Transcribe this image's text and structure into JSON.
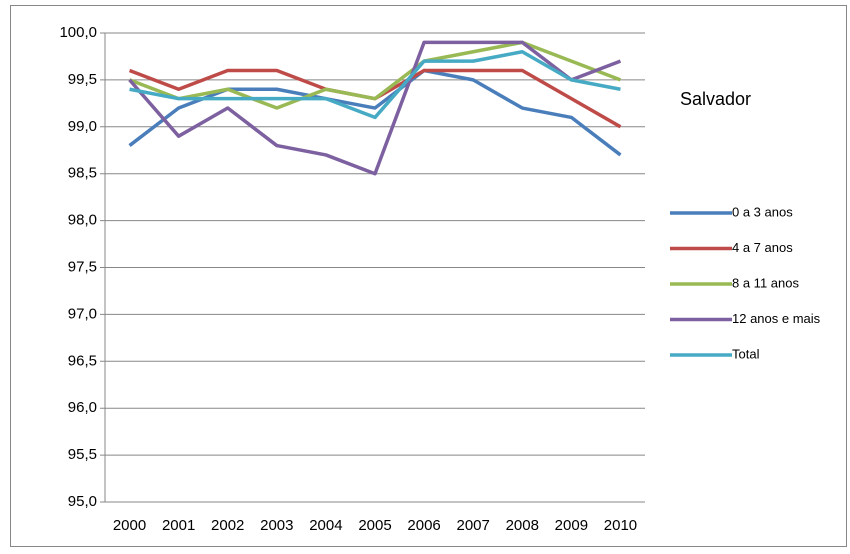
{
  "chart_data": {
    "type": "line",
    "title": "Salvador",
    "categories": [
      "2000",
      "2001",
      "2002",
      "2003",
      "2004",
      "2005",
      "2006",
      "2007",
      "2008",
      "2009",
      "2010"
    ],
    "series": [
      {
        "name": "0 a 3 anos",
        "color": "#4a7ebb",
        "values": [
          98.8,
          99.2,
          99.4,
          99.4,
          99.3,
          99.2,
          99.6,
          99.5,
          99.2,
          99.1,
          98.7
        ]
      },
      {
        "name": "4 a 7 anos",
        "color": "#be4b48",
        "values": [
          99.6,
          99.4,
          99.6,
          99.6,
          99.4,
          99.3,
          99.6,
          99.6,
          99.6,
          99.3,
          99.0
        ]
      },
      {
        "name": "8 a 11 anos",
        "color": "#98b954",
        "values": [
          99.5,
          99.3,
          99.4,
          99.2,
          99.4,
          99.3,
          99.7,
          99.8,
          99.9,
          99.7,
          99.5
        ]
      },
      {
        "name": "12 anos e mais",
        "color": "#7d60a0",
        "values": [
          99.5,
          98.9,
          99.2,
          98.8,
          98.7,
          98.5,
          99.9,
          99.9,
          99.9,
          99.5,
          99.7
        ]
      },
      {
        "name": "Total",
        "color": "#46aac5",
        "values": [
          99.4,
          99.3,
          99.3,
          99.3,
          99.3,
          99.1,
          99.7,
          99.7,
          99.8,
          99.5,
          99.4
        ]
      }
    ],
    "ylim": [
      95,
      100
    ],
    "yticks": [
      {
        "value": 95,
        "label": "95,0"
      },
      {
        "value": 95.5,
        "label": "95,5"
      },
      {
        "value": 96,
        "label": "96,0"
      },
      {
        "value": 96.5,
        "label": "96,5"
      },
      {
        "value": 97,
        "label": "97,0"
      },
      {
        "value": 97.5,
        "label": "97,5"
      },
      {
        "value": 98,
        "label": "98,0"
      },
      {
        "value": 98.5,
        "label": "98,5"
      },
      {
        "value": 99,
        "label": "99,0"
      },
      {
        "value": 99.5,
        "label": "99,5"
      },
      {
        "value": 100,
        "label": "100,0"
      }
    ],
    "grid": true,
    "legend": "right"
  }
}
